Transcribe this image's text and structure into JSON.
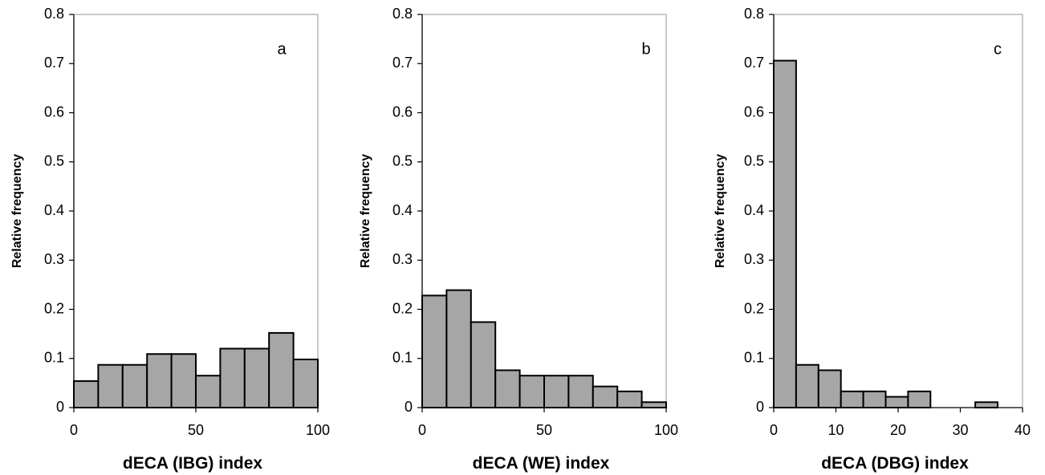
{
  "chart_data": [
    {
      "type": "bar",
      "panel_label": "a",
      "xlabel": "dECA (IBG) index",
      "ylabel": "Relative frequency",
      "bin_edges": [
        0,
        10,
        20,
        30,
        40,
        50,
        60,
        70,
        80,
        90,
        100
      ],
      "values": [
        0.054,
        0.087,
        0.087,
        0.109,
        0.109,
        0.065,
        0.12,
        0.12,
        0.152,
        0.098
      ],
      "xlim": [
        0,
        100
      ],
      "ylim": [
        0,
        0.8
      ],
      "xticks": [
        "0",
        "50",
        "100"
      ],
      "xtick_values": [
        0,
        50,
        100
      ],
      "yticks": [
        "0",
        "0.1",
        "0.2",
        "0.3",
        "0.4",
        "0.5",
        "0.6",
        "0.7",
        "0.8"
      ],
      "grid": false,
      "bar_color": "#a6a6a6"
    },
    {
      "type": "bar",
      "panel_label": "b",
      "xlabel": "dECA (WE) index",
      "ylabel": "Relative frequency",
      "bin_edges": [
        0,
        10,
        20,
        30,
        40,
        50,
        60,
        70,
        80,
        90,
        100
      ],
      "values": [
        0.228,
        0.239,
        0.174,
        0.076,
        0.065,
        0.065,
        0.065,
        0.043,
        0.033,
        0.011
      ],
      "xlim": [
        0,
        100
      ],
      "ylim": [
        0,
        0.8
      ],
      "xticks": [
        "0",
        "50",
        "100"
      ],
      "xtick_values": [
        0,
        50,
        100
      ],
      "yticks": [
        "0",
        "0.1",
        "0.2",
        "0.3",
        "0.4",
        "0.5",
        "0.6",
        "0.7",
        "0.8"
      ],
      "grid": false,
      "bar_color": "#a6a6a6"
    },
    {
      "type": "bar",
      "panel_label": "c",
      "xlabel": "dECA (DBG) index",
      "ylabel": "Relative frequency",
      "bin_edges": [
        0,
        3.6,
        7.2,
        10.8,
        14.4,
        18,
        21.6,
        25.2,
        28.8,
        32.4,
        36
      ],
      "values": [
        0.706,
        0.087,
        0.076,
        0.033,
        0.033,
        0.022,
        0.033,
        0,
        0,
        0.011
      ],
      "xlim": [
        0,
        40
      ],
      "ylim": [
        0,
        0.8
      ],
      "xticks": [
        "0",
        "10",
        "20",
        "30",
        "40"
      ],
      "xtick_values": [
        0,
        10,
        20,
        30,
        40
      ],
      "yticks": [
        "0",
        "0.1",
        "0.2",
        "0.3",
        "0.4",
        "0.5",
        "0.6",
        "0.7",
        "0.8"
      ],
      "grid": false,
      "bar_color": "#a6a6a6"
    }
  ]
}
